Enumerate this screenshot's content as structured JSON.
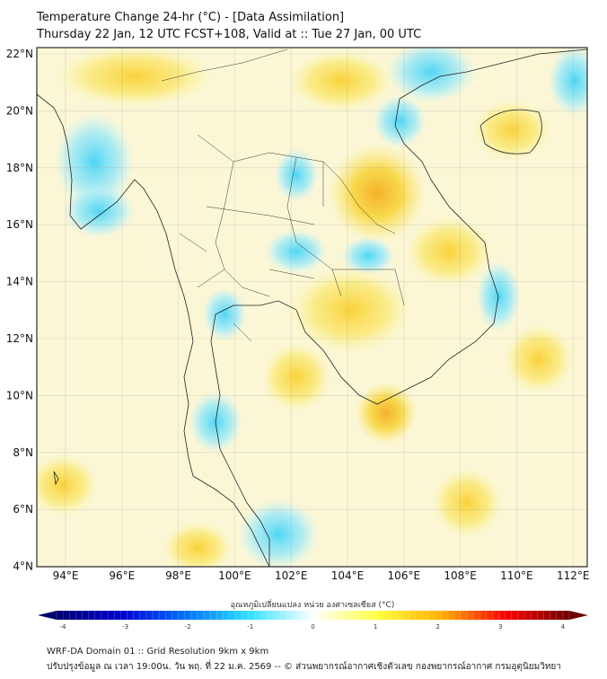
{
  "title": "Temperature Change 24-hr (°C) - [Data Assimilation]",
  "subtitle": "Thursday 22 Jan, 12 UTC FCST+108, Valid at :: Tue 27 Jan, 00 UTC",
  "lat_labels": [
    "22°N",
    "20°N",
    "18°N",
    "16°N",
    "14°N",
    "12°N",
    "10°N",
    "8°N",
    "6°N",
    "4°N"
  ],
  "lat_values": [
    22,
    20,
    18,
    16,
    14,
    12,
    10,
    8,
    6,
    4
  ],
  "lon_labels": [
    "94°E",
    "96°E",
    "98°E",
    "100°E",
    "102°E",
    "104°E",
    "106°E",
    "108°E",
    "110°E",
    "112°E"
  ],
  "lon_values": [
    94,
    96,
    98,
    100,
    102,
    104,
    106,
    108,
    110,
    112
  ],
  "colorbar": {
    "label": "อุณหภูมิเปลี่ยนแปลง หน่วย องศาเซลเซียส (°C)",
    "ticks": [
      "-4",
      "-3",
      "-2",
      "-1",
      "0",
      "1",
      "2",
      "3",
      "4"
    ],
    "range": [
      -4,
      4
    ],
    "colors": [
      "#00006e",
      "#0000d0",
      "#0070ff",
      "#30e0ff",
      "#ffffff",
      "#ffff40",
      "#ffb000",
      "#ff0000",
      "#6e0000"
    ]
  },
  "footer": {
    "line1": "WRF-DA Domain 01 :: Grid Resolution 9km x 9km",
    "line2": "ปรับปรุงข้อมูล ณ เวลา 19:00น. วัน พฤ. ที่ 22 ม.ค. 2569 -- © ส่วนพยากรณ์อากาศเชิงตัวเลข กองพยากรณ์อากาศ กรมอุตุนิยมวิทยา"
  }
}
